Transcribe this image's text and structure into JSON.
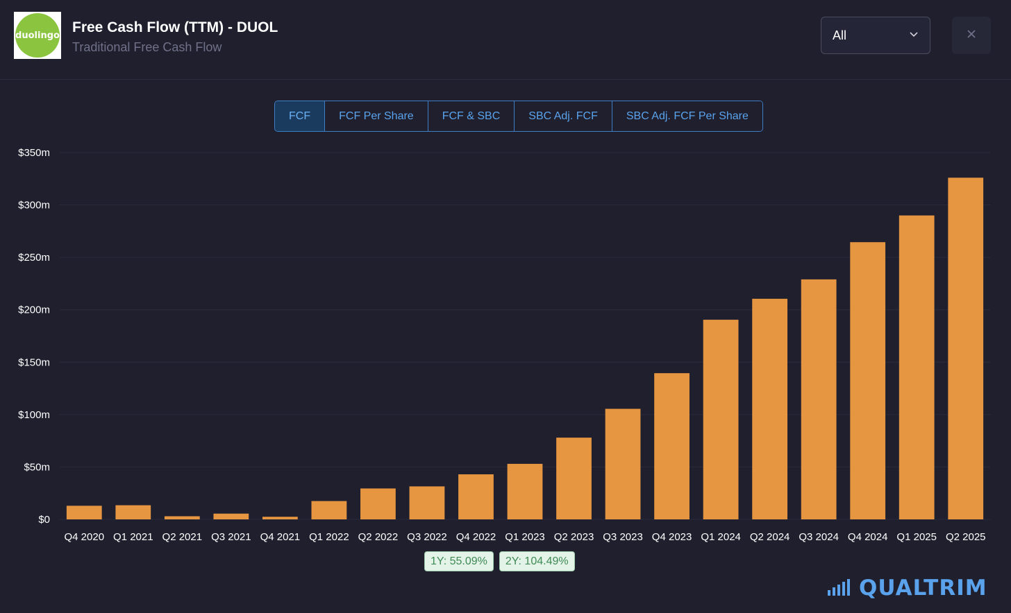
{
  "header": {
    "logo_text": "duolingo",
    "title": "Free Cash Flow (TTM) - DUOL",
    "subtitle": "Traditional Free Cash Flow",
    "period_select": {
      "value": "All"
    },
    "close_icon": "close-icon"
  },
  "tabs": [
    {
      "label": "FCF",
      "active": true
    },
    {
      "label": "FCF Per Share",
      "active": false
    },
    {
      "label": "FCF & SBC",
      "active": false
    },
    {
      "label": "SBC Adj. FCF",
      "active": false
    },
    {
      "label": "SBC Adj. FCF Per Share",
      "active": false
    }
  ],
  "growth": {
    "one_year": "1Y: 55.09%",
    "two_year": "2Y: 104.49%"
  },
  "brand": {
    "name": "QUALTRIM",
    "icon": "bars-icon"
  },
  "colors": {
    "background": "#1f1f2e",
    "bar": "#e69541",
    "accent": "#5aa3ec",
    "logo_green": "#8bc43f"
  },
  "chart_data": {
    "type": "bar",
    "categories": [
      "Q4 2020",
      "Q1 2021",
      "Q2 2021",
      "Q3 2021",
      "Q4 2021",
      "Q1 2022",
      "Q2 2022",
      "Q3 2022",
      "Q4 2022",
      "Q1 2023",
      "Q2 2023",
      "Q3 2023",
      "Q4 2023",
      "Q1 2024",
      "Q2 2024",
      "Q3 2024",
      "Q4 2024",
      "Q1 2025",
      "Q2 2025"
    ],
    "values": [
      13,
      13.5,
      3,
      5.5,
      2.5,
      17.5,
      29.5,
      31.5,
      43,
      53,
      78,
      105.5,
      139.5,
      190.5,
      210.5,
      229,
      264.5,
      290,
      326
    ],
    "yticks": [
      "$0",
      "$50m",
      "$100m",
      "$150m",
      "$200m",
      "$250m",
      "$300m",
      "$350m"
    ],
    "ylim": [
      0,
      350
    ],
    "grid": true
  }
}
